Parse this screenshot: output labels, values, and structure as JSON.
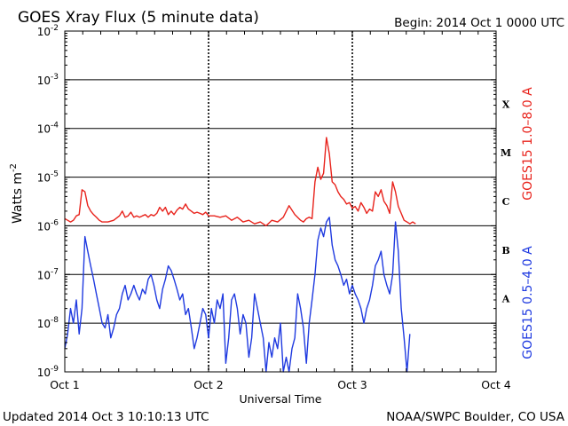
{
  "chart_data": {
    "type": "line",
    "title": "GOES Xray Flux (5 minute data)",
    "begin_label": "Begin:  2014 Oct 1 0000 UTC",
    "xlabel": "Universal Time",
    "ylabel": "Watts m",
    "ylabel_sup": "-2",
    "y_scale": "log",
    "ylim": [
      1e-09,
      0.01
    ],
    "xlim_days": [
      0,
      3
    ],
    "x_ticks": [
      "Oct 1",
      "Oct 2",
      "Oct 3",
      "Oct 4"
    ],
    "y_ticks": [
      {
        "base": "10",
        "exp": "-2"
      },
      {
        "base": "10",
        "exp": "-3"
      },
      {
        "base": "10",
        "exp": "-4"
      },
      {
        "base": "10",
        "exp": "-5"
      },
      {
        "base": "10",
        "exp": "-6"
      },
      {
        "base": "10",
        "exp": "-7"
      },
      {
        "base": "10",
        "exp": "-8"
      },
      {
        "base": "10",
        "exp": "-9"
      }
    ],
    "flare_classes": [
      "X",
      "M",
      "C",
      "B",
      "A"
    ],
    "grid": true,
    "series": [
      {
        "name": "GOES15 1.0–8.0 A",
        "color": "#e8231c",
        "x": [
          0.0,
          0.02,
          0.04,
          0.06,
          0.08,
          0.1,
          0.12,
          0.14,
          0.16,
          0.18,
          0.2,
          0.22,
          0.24,
          0.26,
          0.3,
          0.34,
          0.38,
          0.4,
          0.42,
          0.44,
          0.46,
          0.48,
          0.5,
          0.52,
          0.54,
          0.56,
          0.58,
          0.6,
          0.62,
          0.64,
          0.66,
          0.68,
          0.7,
          0.72,
          0.74,
          0.76,
          0.78,
          0.8,
          0.82,
          0.84,
          0.86,
          0.88,
          0.9,
          0.92,
          0.94,
          0.96,
          0.98,
          1.0,
          1.04,
          1.08,
          1.12,
          1.16,
          1.2,
          1.24,
          1.28,
          1.32,
          1.36,
          1.4,
          1.44,
          1.48,
          1.52,
          1.56,
          1.6,
          1.64,
          1.66,
          1.68,
          1.7,
          1.72,
          1.74,
          1.76,
          1.78,
          1.8,
          1.82,
          1.84,
          1.86,
          1.88,
          1.9,
          1.92,
          1.94,
          1.96,
          1.98,
          2.0,
          2.02,
          2.04,
          2.06,
          2.08,
          2.1,
          2.12,
          2.14,
          2.16,
          2.18,
          2.2,
          2.22,
          2.24,
          2.26,
          2.28,
          2.3,
          2.32,
          2.34,
          2.36,
          2.38,
          2.4,
          2.42,
          2.44
        ],
        "y": [
          1.4e-06,
          1.3e-06,
          1.2e-06,
          1.3e-06,
          1.6e-06,
          1.7e-06,
          5.5e-06,
          5e-06,
          2.6e-06,
          2e-06,
          1.7e-06,
          1.5e-06,
          1.3e-06,
          1.2e-06,
          1.2e-06,
          1.3e-06,
          1.6e-06,
          2e-06,
          1.5e-06,
          1.6e-06,
          1.9e-06,
          1.5e-06,
          1.6e-06,
          1.5e-06,
          1.6e-06,
          1.7e-06,
          1.5e-06,
          1.7e-06,
          1.6e-06,
          1.8e-06,
          2.4e-06,
          2e-06,
          2.4e-06,
          1.7e-06,
          2e-06,
          1.7e-06,
          2.1e-06,
          2.4e-06,
          2.2e-06,
          2.8e-06,
          2.2e-06,
          2e-06,
          1.8e-06,
          1.9e-06,
          1.8e-06,
          1.7e-06,
          1.9e-06,
          1.6e-06,
          1.6e-06,
          1.5e-06,
          1.6e-06,
          1.3e-06,
          1.5e-06,
          1.2e-06,
          1.3e-06,
          1.1e-06,
          1.2e-06,
          1e-06,
          1.3e-06,
          1.2e-06,
          1.5e-06,
          2.6e-06,
          1.7e-06,
          1.3e-06,
          1.2e-06,
          1.4e-06,
          1.5e-06,
          1.4e-06,
          8e-06,
          1.6e-05,
          9e-06,
          1.2e-05,
          6.5e-05,
          3e-05,
          8e-06,
          7e-06,
          5e-06,
          4e-06,
          3.5e-06,
          2.8e-06,
          3e-06,
          2.3e-06,
          2.5e-06,
          2e-06,
          3e-06,
          2.4e-06,
          1.8e-06,
          2.2e-06,
          2e-06,
          5e-06,
          4e-06,
          5.5e-06,
          3.2e-06,
          2.6e-06,
          1.8e-06,
          8e-06,
          5e-06,
          2.5e-06,
          1.8e-06,
          1.3e-06,
          1.2e-06,
          1.1e-06,
          1.2e-06,
          1.1e-06
        ]
      },
      {
        "name": "GOES15 0.5–4.0 A",
        "color": "#1f3ae0",
        "x": [
          0.0,
          0.02,
          0.04,
          0.06,
          0.08,
          0.1,
          0.12,
          0.14,
          0.16,
          0.18,
          0.2,
          0.22,
          0.24,
          0.26,
          0.28,
          0.3,
          0.32,
          0.34,
          0.36,
          0.38,
          0.4,
          0.42,
          0.44,
          0.46,
          0.48,
          0.5,
          0.52,
          0.54,
          0.56,
          0.58,
          0.6,
          0.62,
          0.64,
          0.66,
          0.68,
          0.7,
          0.72,
          0.74,
          0.76,
          0.78,
          0.8,
          0.82,
          0.84,
          0.86,
          0.88,
          0.9,
          0.92,
          0.94,
          0.96,
          0.98,
          1.0,
          1.02,
          1.04,
          1.06,
          1.08,
          1.1,
          1.12,
          1.14,
          1.16,
          1.18,
          1.2,
          1.22,
          1.24,
          1.26,
          1.28,
          1.3,
          1.32,
          1.34,
          1.36,
          1.38,
          1.4,
          1.42,
          1.44,
          1.46,
          1.48,
          1.5,
          1.52,
          1.54,
          1.56,
          1.58,
          1.6,
          1.62,
          1.64,
          1.66,
          1.68,
          1.7,
          1.72,
          1.74,
          1.76,
          1.78,
          1.8,
          1.82,
          1.84,
          1.86,
          1.88,
          1.9,
          1.92,
          1.94,
          1.96,
          1.98,
          2.0,
          2.02,
          2.04,
          2.06,
          2.08,
          2.1,
          2.12,
          2.14,
          2.16,
          2.18,
          2.2,
          2.22,
          2.24,
          2.26,
          2.28,
          2.3,
          2.32,
          2.34,
          2.36,
          2.38,
          2.4
        ],
        "y": [
          3e-09,
          6e-09,
          2e-08,
          1e-08,
          3e-08,
          6e-09,
          2e-08,
          6e-07,
          3e-07,
          1.5e-07,
          8e-08,
          4e-08,
          2e-08,
          1e-08,
          8e-09,
          1.5e-08,
          5e-09,
          8e-09,
          1.5e-08,
          2e-08,
          4e-08,
          6e-08,
          3e-08,
          4e-08,
          6e-08,
          4e-08,
          3e-08,
          5e-08,
          4e-08,
          8e-08,
          1e-07,
          6e-08,
          3e-08,
          2e-08,
          5e-08,
          8e-08,
          1.5e-07,
          1.2e-07,
          8e-08,
          5e-08,
          3e-08,
          4e-08,
          1.5e-08,
          2e-08,
          8e-09,
          3e-09,
          5e-09,
          1e-08,
          2e-08,
          1.5e-08,
          5e-09,
          2e-08,
          1e-08,
          3e-08,
          2e-08,
          4e-08,
          1.5e-09,
          5e-09,
          3e-08,
          4e-08,
          2e-08,
          6e-09,
          1.5e-08,
          1e-08,
          2e-09,
          5e-09,
          4e-08,
          2e-08,
          1e-08,
          5e-09,
          1e-09,
          4e-09,
          2e-09,
          5e-09,
          3e-09,
          1e-08,
          1e-09,
          2e-09,
          1e-09,
          3e-09,
          5e-09,
          4e-08,
          2e-08,
          8e-09,
          1.5e-09,
          1e-08,
          3e-08,
          1e-07,
          5e-07,
          9e-07,
          6e-07,
          1.2e-06,
          1.5e-06,
          4e-07,
          2e-07,
          1.5e-07,
          1e-07,
          6e-08,
          8e-08,
          4e-08,
          6e-08,
          4e-08,
          3e-08,
          2e-08,
          1e-08,
          2e-08,
          3e-08,
          6e-08,
          1.5e-07,
          2e-07,
          3e-07,
          1e-07,
          6e-08,
          4e-08,
          1e-07,
          1.2e-06,
          3e-07,
          2e-08,
          5e-09,
          1e-09,
          6e-09
        ]
      }
    ]
  },
  "footer": {
    "updated": "Updated 2014 Oct  3 10:10:13 UTC",
    "credit": "NOAA/SWPC Boulder, CO USA"
  }
}
